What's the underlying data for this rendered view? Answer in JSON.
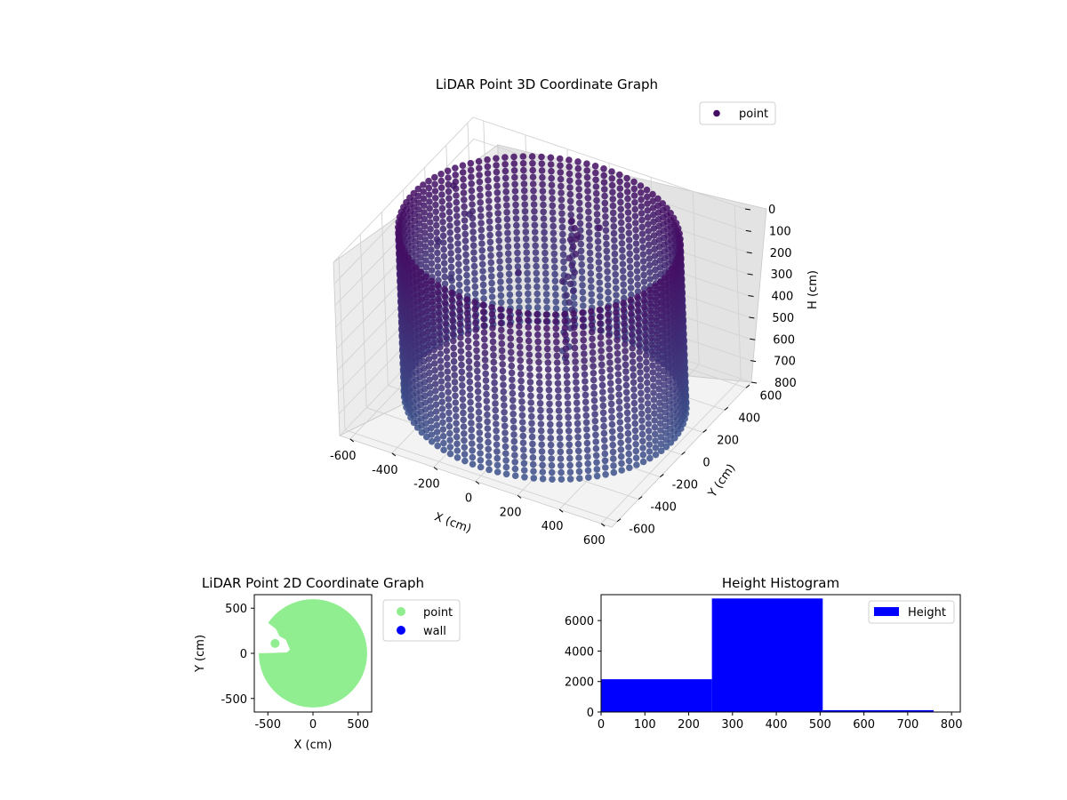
{
  "chart_data": [
    {
      "type": "scatter",
      "title": "LiDAR Point 3D Coordinate Graph",
      "xlabel": "X (cm)",
      "ylabel": "Y (cm)",
      "zlabel": "H (cm)",
      "xlim": [
        -650,
        650
      ],
      "ylim": [
        -650,
        650
      ],
      "zlim": [
        0,
        800
      ],
      "x_ticks": [
        -600,
        -400,
        -200,
        0,
        200,
        400,
        600
      ],
      "y_ticks": [
        -600,
        -400,
        -200,
        0,
        200,
        400,
        600
      ],
      "z_ticks": [
        0,
        100,
        200,
        300,
        400,
        500,
        600,
        700,
        800
      ],
      "z_axis_inverted": true,
      "grid": true,
      "legend": {
        "position": "top-right",
        "entries": [
          "point"
        ]
      },
      "colormap": "viridis",
      "series": [
        {
          "name": "point",
          "shape": "cylindrical wall of points",
          "center_x": 0,
          "center_y": 0,
          "radius": 600,
          "h_min": 0,
          "h_max": 760,
          "scattered_points": [
            {
              "x": -640,
              "y": 280,
              "h": 380
            },
            {
              "x": -600,
              "y": 360,
              "h": 150
            },
            {
              "x": -560,
              "y": 420,
              "h": 300
            },
            {
              "x": -520,
              "y": 300,
              "h": 620
            },
            {
              "x": -500,
              "y": 120,
              "h": 420
            },
            {
              "x": -470,
              "y": 80,
              "h": 460
            },
            {
              "x": -420,
              "y": 200,
              "h": 560
            },
            {
              "x": -150,
              "y": 80,
              "h": 260
            },
            {
              "x": 60,
              "y": 220,
              "h": 110
            },
            {
              "x": 120,
              "y": 320,
              "h": 90
            },
            {
              "x": 40,
              "y": 120,
              "h": 260
            }
          ]
        }
      ]
    },
    {
      "type": "scatter",
      "title": "LiDAR Point 2D Coordinate Graph",
      "xlabel": "X (cm)",
      "ylabel": "Y (cm)",
      "xlim": [
        -650,
        650
      ],
      "ylim": [
        -650,
        650
      ],
      "x_ticks": [
        -500,
        0,
        500
      ],
      "y_ticks": [
        -500,
        0,
        500
      ],
      "grid": false,
      "legend": {
        "position": "outside-right",
        "entries": [
          "point",
          "wall"
        ]
      },
      "series": [
        {
          "name": "point",
          "color": "#90ee90",
          "shape": "filled disk",
          "center": [
            0,
            0
          ],
          "radius": 600,
          "notch_polygon": [
            [
              -600,
              0
            ],
            [
              -290,
              10
            ],
            [
              -255,
              40
            ],
            [
              -300,
              150
            ],
            [
              -370,
              190
            ],
            [
              -410,
              270
            ],
            [
              -500,
              340
            ],
            [
              -560,
              280
            ],
            [
              -600,
              200
            ]
          ],
          "isolated_point": [
            -420,
            110
          ]
        },
        {
          "name": "wall",
          "color": "#0000ff"
        }
      ]
    },
    {
      "type": "bar",
      "title": "Height Histogram",
      "xlabel": "",
      "ylabel": "",
      "xlim": [
        0,
        820
      ],
      "ylim": [
        0,
        7700
      ],
      "x_ticks": [
        0,
        100,
        200,
        300,
        400,
        500,
        600,
        700,
        800
      ],
      "y_ticks": [
        0,
        2000,
        4000,
        6000
      ],
      "grid": false,
      "legend": {
        "position": "top-right",
        "entries": [
          "Height"
        ]
      },
      "series": [
        {
          "name": "Height",
          "color": "#0000ff",
          "bins": [
            [
              0,
              253
            ],
            [
              253,
              506
            ],
            [
              506,
              759
            ]
          ],
          "values": [
            2150,
            7450,
            120
          ]
        }
      ]
    }
  ]
}
